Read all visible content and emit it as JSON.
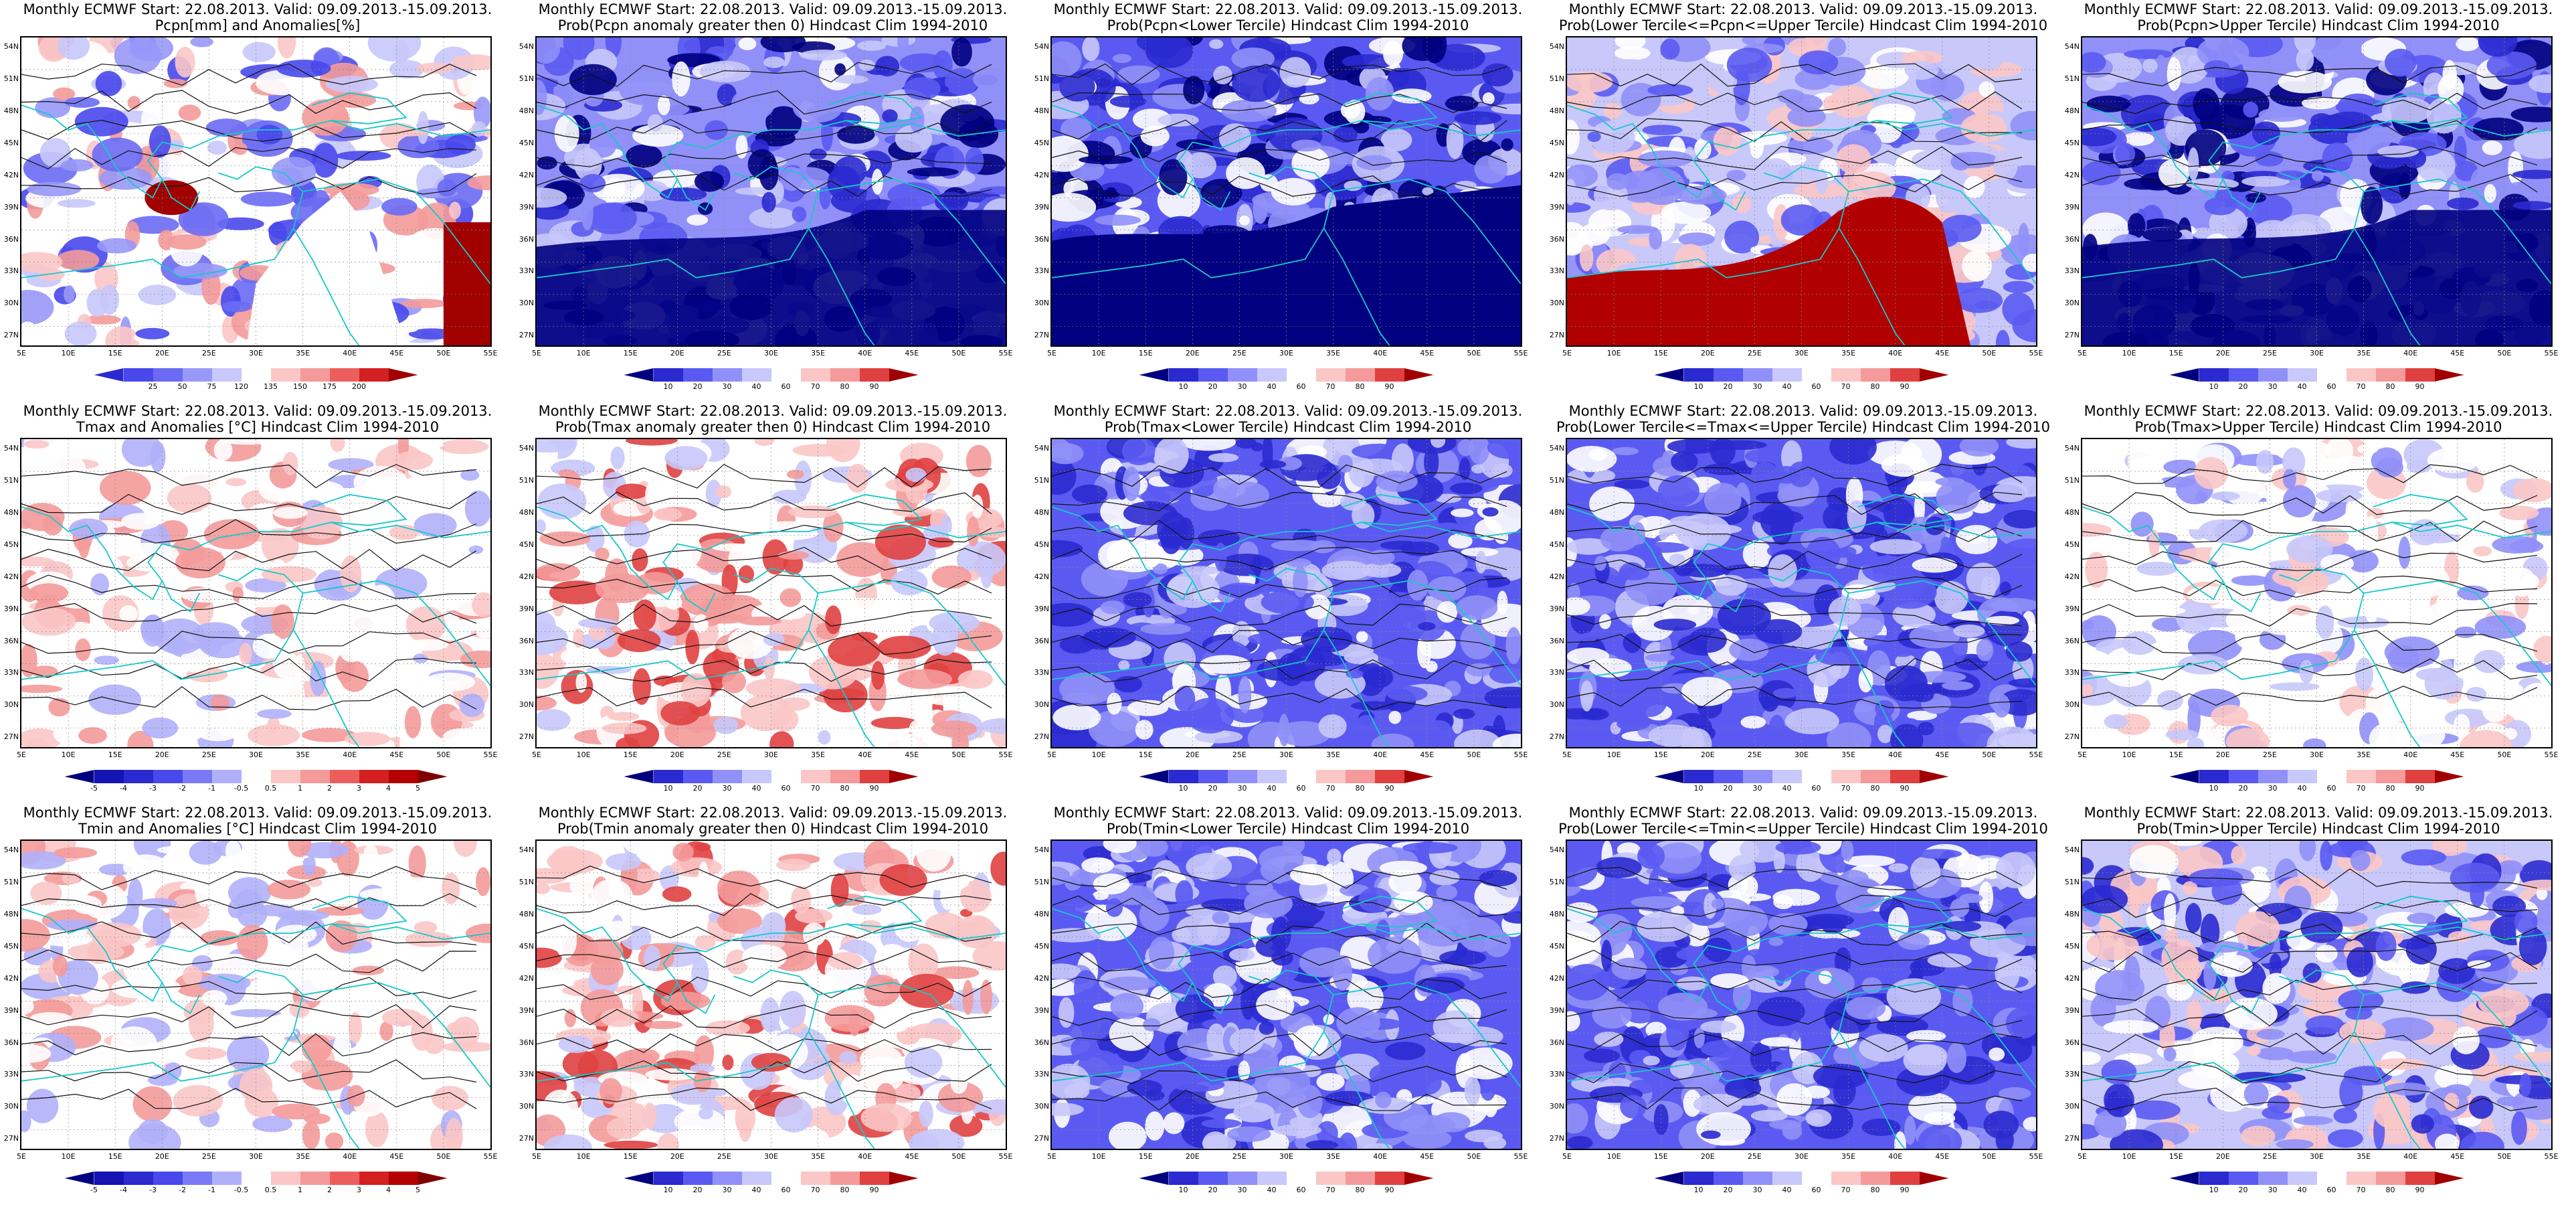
{
  "x_ticks": [
    "5E",
    "10E",
    "15E",
    "20E",
    "25E",
    "30E",
    "35E",
    "40E",
    "45E",
    "50E",
    "55E"
  ],
  "y_ticks": [
    "54N",
    "51N",
    "48N",
    "45N",
    "42N",
    "39N",
    "36N",
    "33N",
    "30N",
    "27N"
  ],
  "colorbars": {
    "precip_anom": {
      "labels": [
        "25",
        "50",
        "75",
        "120",
        "135",
        "150",
        "175",
        "200"
      ],
      "colors": [
        "#2a2ad0",
        "#4848ec",
        "#6a6af4",
        "#9898f8",
        "#c8c8fb",
        "#ffffff",
        "#fbc6c6",
        "#f49a9a",
        "#ec5e5e",
        "#d42020",
        "#a00000"
      ]
    },
    "temp_anom": {
      "labels": [
        "-5",
        "-4",
        "-3",
        "-2",
        "-1",
        "-0.5",
        "0.5",
        "1",
        "2",
        "3",
        "4",
        "5"
      ],
      "colors": [
        "#000080",
        "#1414b4",
        "#2a2ad0",
        "#4848ec",
        "#7a7af6",
        "#b0b0fa",
        "#ffffff",
        "#fbc6c6",
        "#f49a9a",
        "#ec5e5e",
        "#d42020",
        "#b40000",
        "#800000"
      ]
    },
    "prob": {
      "labels": [
        "10",
        "20",
        "30",
        "40",
        "60",
        "70",
        "80",
        "90"
      ],
      "colors": [
        "#000080",
        "#2a2ad0",
        "#5a5af2",
        "#9090f8",
        "#c8c8fb",
        "#ffffff",
        "#fbc6c6",
        "#f49a9a",
        "#e04040",
        "#a00000"
      ]
    }
  },
  "panels": [
    {
      "line1": "Monthly ECMWF Start: 22.08.2013. Valid: 09.09.2013.-15.09.2013.",
      "line2": "Pcpn[mm] and Anomalies[%]",
      "line3": "",
      "colorbar": "precip_anom",
      "style": "pcp_anom"
    },
    {
      "line1": "Monthly ECMWF Start: 22.08.2013. Valid: 09.09.2013.-15.09.2013.",
      "line2": "Prob(Pcpn anomaly greater then 0) Hindcast Clim 1994-2010",
      "line3": "",
      "colorbar": "prob",
      "style": "pcp_blue"
    },
    {
      "line1": "Monthly ECMWF Start: 22.08.2013. Valid: 09.09.2013.-15.09.2013.",
      "line2": "Prob(Pcpn<Lower Tercile) Hindcast Clim 1994-2010",
      "line3": "",
      "colorbar": "prob",
      "style": "pcp_navy"
    },
    {
      "line1": "Monthly ECMWF Start: 22.08.2013. Valid: 09.09.2013.-15.09.2013.",
      "line2": "Prob(Lower Tercile<=Pcpn<=Upper Tercile) Hindcast Clim 1994-2010",
      "line3": "",
      "colorbar": "prob",
      "style": "pcp_red"
    },
    {
      "line1": "Monthly ECMWF Start: 22.08.2013. Valid: 09.09.2013.-15.09.2013.",
      "line2": "Prob(Pcpn>Upper Tercile) Hindcast Clim 1994-2010",
      "line3": "",
      "colorbar": "prob",
      "style": "pcp_blue"
    },
    {
      "line1": "Monthly ECMWF Start: 22.08.2013. Valid: 09.09.2013.-15.09.2013.",
      "line2": "Tmax and Anomalies [°C] Hindcast Clim 1994-2010",
      "line3": "",
      "colorbar": "temp_anom",
      "style": "t_light"
    },
    {
      "line1": "Monthly ECMWF Start: 22.08.2013. Valid: 09.09.2013.-15.09.2013.",
      "line2": "Prob(Tmax anomaly greater then 0) Hindcast Clim 1994-2010",
      "line3": "",
      "colorbar": "prob",
      "style": "t_red"
    },
    {
      "line1": "Monthly ECMWF Start: 22.08.2013. Valid: 09.09.2013.-15.09.2013.",
      "line2": "Prob(Tmax<Lower Tercile) Hindcast Clim 1994-2010",
      "line3": "",
      "colorbar": "prob",
      "style": "t_blue"
    },
    {
      "line1": "Monthly ECMWF Start: 22.08.2013. Valid: 09.09.2013.-15.09.2013.",
      "line2": "Prob(Lower Tercile<=Tmax<=Upper Tercile) Hindcast Clim 1994-2010",
      "line3": "",
      "colorbar": "prob",
      "style": "t_blue"
    },
    {
      "line1": "Monthly ECMWF Start: 22.08.2013. Valid: 09.09.2013.-15.09.2013.",
      "line2": "Prob(Tmax>Upper Tercile) Hindcast Clim 1994-2010",
      "line3": "",
      "colorbar": "prob",
      "style": "t_pale"
    },
    {
      "line1": "Monthly ECMWF Start: 22.08.2013. Valid: 09.09.2013.-15.09.2013.",
      "line2": "Tmin and Anomalies [°C] Hindcast Clim 1994-2010",
      "line3": "",
      "colorbar": "temp_anom",
      "style": "t_light"
    },
    {
      "line1": "Monthly ECMWF Start: 22.08.2013. Valid: 09.09.2013.-15.09.2013.",
      "line2": "Prob(Tmin anomaly greater then 0) Hindcast Clim 1994-2010",
      "line3": "",
      "colorbar": "prob",
      "style": "t_red"
    },
    {
      "line1": "Monthly ECMWF Start: 22.08.2013. Valid: 09.09.2013.-15.09.2013.",
      "line2": "Prob(Tmin<Lower Tercile) Hindcast Clim 1994-2010",
      "line3": "",
      "colorbar": "prob",
      "style": "t_blue"
    },
    {
      "line1": "Monthly ECMWF Start: 22.08.2013. Valid: 09.09.2013.-15.09.2013.",
      "line2": "Prob(Lower Tercile<=Tmin<=Upper Tercile) Hindcast Clim 1994-2010",
      "line3": "",
      "colorbar": "prob",
      "style": "t_blue"
    },
    {
      "line1": "Monthly ECMWF Start: 22.08.2013. Valid: 09.09.2013.-15.09.2013.",
      "line2": "Prob(Tmin>Upper Tercile) Hindcast Clim 1994-2010",
      "line3": "",
      "colorbar": "prob",
      "style": "t_mixed"
    }
  ]
}
